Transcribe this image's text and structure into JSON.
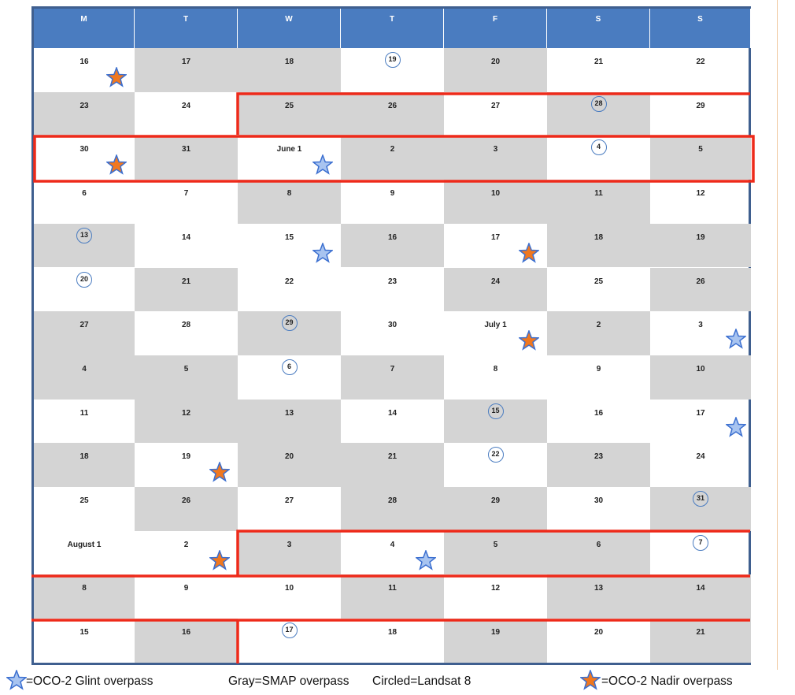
{
  "headers": [
    "M",
    "T",
    "W",
    "T",
    "F",
    "S",
    "S"
  ],
  "rows": [
    [
      {
        "t": "16",
        "g": false,
        "c": false,
        "s": "nadir"
      },
      {
        "t": "17",
        "g": true,
        "c": false,
        "s": ""
      },
      {
        "t": "18",
        "g": true,
        "c": false,
        "s": ""
      },
      {
        "t": "19",
        "g": false,
        "c": true,
        "s": ""
      },
      {
        "t": "20",
        "g": true,
        "c": false,
        "s": ""
      },
      {
        "t": "21",
        "g": false,
        "c": false,
        "s": ""
      },
      {
        "t": "22",
        "g": false,
        "c": false,
        "s": ""
      }
    ],
    [
      {
        "t": "23",
        "g": true,
        "c": false,
        "s": ""
      },
      {
        "t": "24",
        "g": false,
        "c": false,
        "s": ""
      },
      {
        "t": "25",
        "g": true,
        "c": false,
        "s": ""
      },
      {
        "t": "26",
        "g": true,
        "c": false,
        "s": ""
      },
      {
        "t": "27",
        "g": false,
        "c": false,
        "s": ""
      },
      {
        "t": "28",
        "g": true,
        "c": true,
        "s": ""
      },
      {
        "t": "29",
        "g": false,
        "c": false,
        "s": ""
      }
    ],
    [
      {
        "t": "30",
        "g": false,
        "c": false,
        "s": "nadir"
      },
      {
        "t": "31",
        "g": true,
        "c": false,
        "s": ""
      },
      {
        "t": "June 1",
        "g": false,
        "c": false,
        "s": "glint"
      },
      {
        "t": "2",
        "g": true,
        "c": false,
        "s": ""
      },
      {
        "t": "3",
        "g": true,
        "c": false,
        "s": ""
      },
      {
        "t": "4",
        "g": false,
        "c": true,
        "s": ""
      },
      {
        "t": "5",
        "g": true,
        "c": false,
        "s": ""
      }
    ],
    [
      {
        "t": "6",
        "g": false,
        "c": false,
        "s": ""
      },
      {
        "t": "7",
        "g": false,
        "c": false,
        "s": ""
      },
      {
        "t": "8",
        "g": true,
        "c": false,
        "s": ""
      },
      {
        "t": "9",
        "g": false,
        "c": false,
        "s": ""
      },
      {
        "t": "10",
        "g": true,
        "c": false,
        "s": ""
      },
      {
        "t": "11",
        "g": true,
        "c": false,
        "s": ""
      },
      {
        "t": "12",
        "g": false,
        "c": false,
        "s": ""
      }
    ],
    [
      {
        "t": "13",
        "g": true,
        "c": true,
        "s": ""
      },
      {
        "t": "14",
        "g": false,
        "c": false,
        "s": ""
      },
      {
        "t": "15",
        "g": false,
        "c": false,
        "s": "glint"
      },
      {
        "t": "16",
        "g": true,
        "c": false,
        "s": ""
      },
      {
        "t": "17",
        "g": false,
        "c": false,
        "s": "nadir"
      },
      {
        "t": "18",
        "g": true,
        "c": false,
        "s": ""
      },
      {
        "t": "19",
        "g": true,
        "c": false,
        "s": ""
      }
    ],
    [
      {
        "t": "20",
        "g": false,
        "c": true,
        "s": ""
      },
      {
        "t": "21",
        "g": true,
        "c": false,
        "s": ""
      },
      {
        "t": "22",
        "g": false,
        "c": false,
        "s": ""
      },
      {
        "t": "23",
        "g": false,
        "c": false,
        "s": ""
      },
      {
        "t": "24",
        "g": true,
        "c": false,
        "s": ""
      },
      {
        "t": "25",
        "g": false,
        "c": false,
        "s": ""
      },
      {
        "t": "26",
        "g": true,
        "c": false,
        "s": ""
      }
    ],
    [
      {
        "t": "27",
        "g": true,
        "c": false,
        "s": ""
      },
      {
        "t": "28",
        "g": false,
        "c": false,
        "s": ""
      },
      {
        "t": "29",
        "g": true,
        "c": true,
        "s": ""
      },
      {
        "t": "30",
        "g": false,
        "c": false,
        "s": ""
      },
      {
        "t": "July 1",
        "g": false,
        "c": false,
        "s": "nadir"
      },
      {
        "t": "2",
        "g": true,
        "c": false,
        "s": ""
      },
      {
        "t": "3",
        "g": false,
        "c": false,
        "s": "glint"
      }
    ],
    [
      {
        "t": "4",
        "g": true,
        "c": false,
        "s": ""
      },
      {
        "t": "5",
        "g": true,
        "c": false,
        "s": ""
      },
      {
        "t": "6",
        "g": false,
        "c": true,
        "s": ""
      },
      {
        "t": "7",
        "g": true,
        "c": false,
        "s": ""
      },
      {
        "t": "8",
        "g": false,
        "c": false,
        "s": ""
      },
      {
        "t": "9",
        "g": false,
        "c": false,
        "s": ""
      },
      {
        "t": "10",
        "g": true,
        "c": false,
        "s": ""
      }
    ],
    [
      {
        "t": "11",
        "g": false,
        "c": false,
        "s": ""
      },
      {
        "t": "12",
        "g": true,
        "c": false,
        "s": ""
      },
      {
        "t": "13",
        "g": true,
        "c": false,
        "s": ""
      },
      {
        "t": "14",
        "g": false,
        "c": false,
        "s": ""
      },
      {
        "t": "15",
        "g": true,
        "c": true,
        "s": ""
      },
      {
        "t": "16",
        "g": false,
        "c": false,
        "s": ""
      },
      {
        "t": "17",
        "g": false,
        "c": false,
        "s": "glint"
      }
    ],
    [
      {
        "t": "18",
        "g": true,
        "c": false,
        "s": ""
      },
      {
        "t": "19",
        "g": false,
        "c": false,
        "s": "nadir"
      },
      {
        "t": "20",
        "g": true,
        "c": false,
        "s": ""
      },
      {
        "t": "21",
        "g": true,
        "c": false,
        "s": ""
      },
      {
        "t": "22",
        "g": false,
        "c": true,
        "s": ""
      },
      {
        "t": "23",
        "g": true,
        "c": false,
        "s": ""
      },
      {
        "t": "24",
        "g": false,
        "c": false,
        "s": ""
      }
    ],
    [
      {
        "t": "25",
        "g": false,
        "c": false,
        "s": ""
      },
      {
        "t": "26",
        "g": true,
        "c": false,
        "s": ""
      },
      {
        "t": "27",
        "g": false,
        "c": false,
        "s": ""
      },
      {
        "t": "28",
        "g": true,
        "c": false,
        "s": ""
      },
      {
        "t": "29",
        "g": true,
        "c": false,
        "s": ""
      },
      {
        "t": "30",
        "g": false,
        "c": false,
        "s": ""
      },
      {
        "t": "31",
        "g": true,
        "c": true,
        "s": ""
      }
    ],
    [
      {
        "t": "August 1",
        "g": false,
        "c": false,
        "s": ""
      },
      {
        "t": "2",
        "g": false,
        "c": false,
        "s": "nadir"
      },
      {
        "t": "3",
        "g": true,
        "c": false,
        "s": ""
      },
      {
        "t": "4",
        "g": false,
        "c": false,
        "s": "glint"
      },
      {
        "t": "5",
        "g": true,
        "c": false,
        "s": ""
      },
      {
        "t": "6",
        "g": true,
        "c": false,
        "s": ""
      },
      {
        "t": "7",
        "g": false,
        "c": true,
        "s": ""
      }
    ],
    [
      {
        "t": "8",
        "g": true,
        "c": false,
        "s": ""
      },
      {
        "t": "9",
        "g": false,
        "c": false,
        "s": ""
      },
      {
        "t": "10",
        "g": false,
        "c": false,
        "s": ""
      },
      {
        "t": "11",
        "g": true,
        "c": false,
        "s": ""
      },
      {
        "t": "12",
        "g": false,
        "c": false,
        "s": ""
      },
      {
        "t": "13",
        "g": true,
        "c": false,
        "s": ""
      },
      {
        "t": "14",
        "g": true,
        "c": false,
        "s": ""
      }
    ],
    [
      {
        "t": "15",
        "g": false,
        "c": false,
        "s": ""
      },
      {
        "t": "16",
        "g": true,
        "c": false,
        "s": ""
      },
      {
        "t": "17",
        "g": false,
        "c": true,
        "s": ""
      },
      {
        "t": "18",
        "g": false,
        "c": false,
        "s": ""
      },
      {
        "t": "19",
        "g": true,
        "c": false,
        "s": ""
      },
      {
        "t": "20",
        "g": false,
        "c": false,
        "s": ""
      },
      {
        "t": "21",
        "g": true,
        "c": false,
        "s": ""
      }
    ]
  ],
  "legend": {
    "glint": "=OCO-2 Glint overpass",
    "gray": "Gray=SMAP overpass",
    "circled": "Circled=Landsat 8",
    "nadir": "=OCO-2 Nadir overpass"
  },
  "colors": {
    "header": "#4a7cc0",
    "gray_cell": "#d4d4d4",
    "highlight_border": "#ee2a1a",
    "glint_star": "#a8c4f0",
    "nadir_star": "#f07820"
  },
  "icons": {
    "glint": "star-outline-icon",
    "nadir": "star-filled-icon"
  }
}
